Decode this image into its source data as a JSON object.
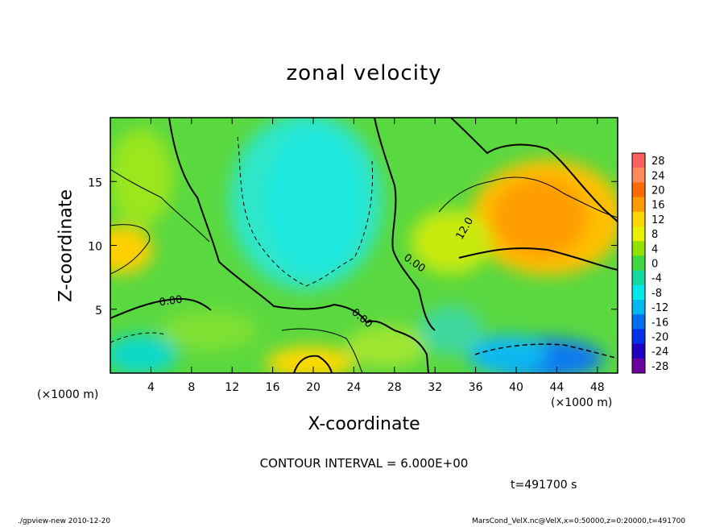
{
  "chart_data": {
    "type": "heatmap",
    "title": "zonal velocity",
    "xlabel": "X-coordinate",
    "ylabel": "Z-coordinate",
    "x_unit_label": "(×1000 m)",
    "x_ticks": [
      4,
      8,
      12,
      16,
      20,
      24,
      28,
      32,
      36,
      40,
      44,
      48
    ],
    "y_ticks": [
      5,
      10,
      15
    ],
    "xlim": [
      0,
      50
    ],
    "ylim": [
      0,
      20
    ],
    "colorbar": {
      "levels": [
        28,
        24,
        20,
        16,
        12,
        8,
        4,
        0,
        -4,
        -8,
        -12,
        -16,
        -20,
        -24,
        -28
      ],
      "colors": [
        "#ff6060",
        "#ff8a5a",
        "#ff6a00",
        "#ff9a00",
        "#ffd400",
        "#e8f000",
        "#90e000",
        "#3fd640",
        "#10d8a0",
        "#00e8e8",
        "#00b8f0",
        "#0070f0",
        "#0030e8",
        "#2000c0",
        "#6a00a0"
      ]
    },
    "contour_labels": [
      {
        "text": "0.00",
        "x": 6.0,
        "z": 5.4,
        "angle": -8
      },
      {
        "text": "0.00",
        "x": 24.6,
        "z": 4.1,
        "angle": 40
      },
      {
        "text": "0.00",
        "x": 29.8,
        "z": 8.4,
        "angle": 35
      },
      {
        "text": "12.0",
        "x": 35.2,
        "z": 11.2,
        "angle": -60
      }
    ],
    "contour_interval": "CONTOUR INTERVAL = 6.000E+00",
    "time": "t=491700 s"
  },
  "footer": {
    "left": "./gpview-new  2010-12-20",
    "right": "MarsCond_VelX.nc@VelX,x=0:50000,z=0:20000,t=491700"
  }
}
